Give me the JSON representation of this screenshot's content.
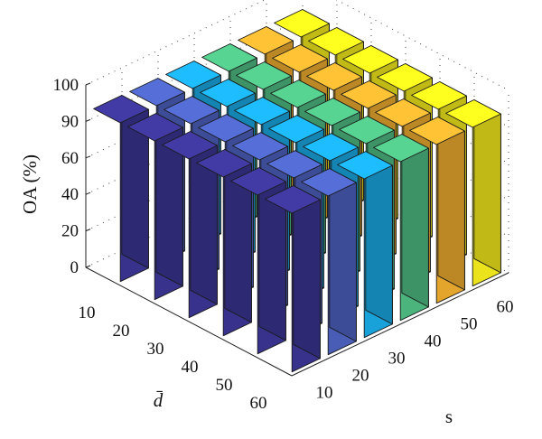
{
  "chart_data": {
    "type": "bar3d",
    "xlabel": "s",
    "ylabel": "d̄",
    "zlabel": "OA (%)",
    "x_categories": [
      "10",
      "20",
      "30",
      "40",
      "50",
      "60"
    ],
    "y_categories": [
      "10",
      "20",
      "30",
      "40",
      "50",
      "60"
    ],
    "z_ticks": [
      "0",
      "20",
      "40",
      "60",
      "90",
      "100"
    ],
    "zlim": [
      0,
      100
    ],
    "grid": true,
    "colors_by_s": [
      "#3b3593",
      "#4d62c1",
      "#1aa9e5",
      "#4ebd82",
      "#f0ae2f",
      "#f7ef1c"
    ],
    "values_note_rows_are_d_cols_are_s": "",
    "values": [
      [
        87,
        87,
        87,
        87,
        87,
        87
      ],
      [
        87,
        87,
        87,
        87,
        87,
        87
      ],
      [
        87,
        87,
        87,
        87,
        87,
        87
      ],
      [
        87,
        87,
        87,
        87,
        87,
        87
      ],
      [
        87,
        87,
        87,
        87,
        87,
        87
      ],
      [
        87,
        87,
        87,
        87,
        87,
        87
      ]
    ]
  }
}
